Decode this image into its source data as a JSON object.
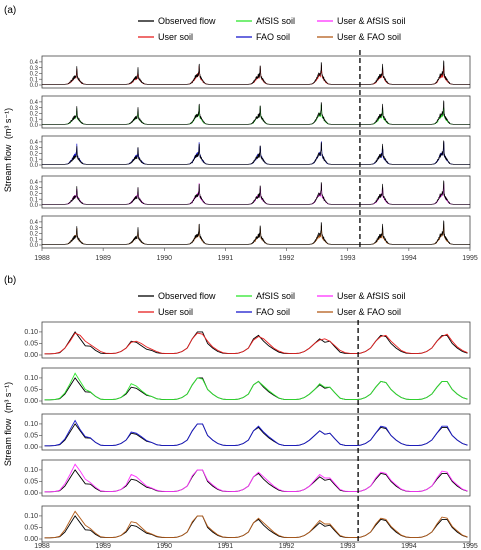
{
  "figure": {
    "axis_label": "Stream flow",
    "axis_unit": "(m³ s⁻¹)",
    "split_marker": "dashed vertical line"
  },
  "legend": {
    "items": [
      {
        "key": "observed",
        "label": "Observed flow",
        "color": "#000000"
      },
      {
        "key": "afsis",
        "label": "AfSIS soil",
        "color": "#2ee62e"
      },
      {
        "key": "user_afsis",
        "label": "User & AfSIS soil",
        "color": "#ff33ff"
      },
      {
        "key": "user",
        "label": "User soil",
        "color": "#e62020"
      },
      {
        "key": "fao",
        "label": "FAO soil",
        "color": "#1a1acc"
      },
      {
        "key": "user_fao",
        "label": "User & FAO soil",
        "color": "#b35c1a"
      }
    ]
  },
  "colors": {
    "observed": "#000000",
    "user": "#e62020",
    "afsis": "#2ee62e",
    "fao": "#1a1acc",
    "user_afsis": "#ff33ff",
    "user_fao": "#b35c1a"
  },
  "chart_data": [
    {
      "panel_label": "(a)",
      "type": "line",
      "resolution": "daily",
      "x_ticks": [
        "1988",
        "1989",
        "1990",
        "1991",
        "1992",
        "1993",
        "1994",
        "1995"
      ],
      "xlim": [
        1988,
        1995
      ],
      "ylim": [
        0,
        0.45
      ],
      "y_ticks": [
        "0.0",
        "0.1",
        "0.2",
        "0.3",
        "0.4"
      ],
      "split_at": 1993.2,
      "peak_years": [
        1988.55,
        1989.55,
        1990.55,
        1991.55,
        1992.55,
        1993.55,
        1994.55
      ],
      "observed_peaks": [
        0.28,
        0.26,
        0.36,
        0.33,
        0.38,
        0.34,
        0.4
      ],
      "subplots": [
        {
          "series": "user",
          "sim_peaks": [
            0.24,
            0.2,
            0.3,
            0.26,
            0.3,
            0.26,
            0.3
          ]
        },
        {
          "series": "afsis",
          "sim_peaks": [
            0.24,
            0.22,
            0.3,
            0.28,
            0.32,
            0.26,
            0.3
          ]
        },
        {
          "series": "fao",
          "sim_peaks": [
            0.3,
            0.26,
            0.34,
            0.3,
            0.34,
            0.3,
            0.36
          ]
        },
        {
          "series": "user_afsis",
          "sim_peaks": [
            0.26,
            0.24,
            0.32,
            0.28,
            0.32,
            0.28,
            0.34
          ]
        },
        {
          "series": "user_fao",
          "sim_peaks": [
            0.26,
            0.22,
            0.3,
            0.26,
            0.3,
            0.26,
            0.32
          ]
        }
      ]
    },
    {
      "panel_label": "(b)",
      "type": "line",
      "resolution": "monthly",
      "x_ticks": [
        "1988",
        "1989",
        "1990",
        "1991",
        "1992",
        "1993",
        "1994",
        "1995"
      ],
      "xlim": [
        1988,
        1995
      ],
      "ylim": [
        0,
        0.13
      ],
      "y_ticks": [
        "0.00",
        "0.05",
        "0.10"
      ],
      "split_at": 1993.17,
      "x_months": [
        "1988-01",
        "1988-02",
        "1988-03",
        "1988-04",
        "1988-05",
        "1988-06",
        "1988-07",
        "1988-08",
        "1988-09",
        "1988-10",
        "1988-11",
        "1988-12",
        "1989-01",
        "1989-02",
        "1989-03",
        "1989-04",
        "1989-05",
        "1989-06",
        "1989-07",
        "1989-08",
        "1989-09",
        "1989-10",
        "1989-11",
        "1989-12",
        "1990-01",
        "1990-02",
        "1990-03",
        "1990-04",
        "1990-05",
        "1990-06",
        "1990-07",
        "1990-08",
        "1990-09",
        "1990-10",
        "1990-11",
        "1990-12",
        "1991-01",
        "1991-02",
        "1991-03",
        "1991-04",
        "1991-05",
        "1991-06",
        "1991-07",
        "1991-08",
        "1991-09",
        "1991-10",
        "1991-11",
        "1991-12",
        "1992-01",
        "1992-02",
        "1992-03",
        "1992-04",
        "1992-05",
        "1992-06",
        "1992-07",
        "1992-08",
        "1992-09",
        "1992-10",
        "1992-11",
        "1992-12",
        "1993-01",
        "1993-02",
        "1993-03",
        "1993-04",
        "1993-05",
        "1993-06",
        "1993-07",
        "1993-08",
        "1993-09",
        "1993-10",
        "1993-11",
        "1993-12",
        "1994-01",
        "1994-02",
        "1994-03",
        "1994-04",
        "1994-05",
        "1994-06",
        "1994-07",
        "1994-08",
        "1994-09",
        "1994-10",
        "1994-11",
        "1994-12"
      ],
      "observed": [
        0.005,
        0.005,
        0.006,
        0.01,
        0.03,
        0.065,
        0.1,
        0.07,
        0.04,
        0.038,
        0.02,
        0.008,
        0.006,
        0.006,
        0.008,
        0.015,
        0.03,
        0.06,
        0.055,
        0.04,
        0.025,
        0.02,
        0.01,
        0.007,
        0.006,
        0.006,
        0.008,
        0.015,
        0.03,
        0.07,
        0.1,
        0.1,
        0.05,
        0.03,
        0.015,
        0.008,
        0.006,
        0.006,
        0.008,
        0.015,
        0.03,
        0.07,
        0.085,
        0.06,
        0.04,
        0.025,
        0.012,
        0.007,
        0.006,
        0.006,
        0.008,
        0.015,
        0.03,
        0.05,
        0.07,
        0.055,
        0.06,
        0.035,
        0.012,
        0.007,
        0.006,
        0.006,
        0.008,
        0.015,
        0.03,
        0.06,
        0.085,
        0.08,
        0.05,
        0.03,
        0.015,
        0.008,
        0.006,
        0.006,
        0.008,
        0.015,
        0.03,
        0.06,
        0.085,
        0.085,
        0.05,
        0.03,
        0.015,
        0.008
      ],
      "subplots": [
        {
          "series": "user",
          "values": [
            0.005,
            0.005,
            0.006,
            0.012,
            0.03,
            0.06,
            0.095,
            0.085,
            0.06,
            0.045,
            0.03,
            0.015,
            0.008,
            0.007,
            0.008,
            0.015,
            0.03,
            0.055,
            0.06,
            0.05,
            0.035,
            0.025,
            0.015,
            0.008,
            0.006,
            0.006,
            0.008,
            0.015,
            0.03,
            0.07,
            0.095,
            0.09,
            0.06,
            0.035,
            0.02,
            0.01,
            0.007,
            0.006,
            0.008,
            0.015,
            0.03,
            0.065,
            0.08,
            0.07,
            0.05,
            0.03,
            0.017,
            0.009,
            0.007,
            0.006,
            0.008,
            0.015,
            0.03,
            0.05,
            0.065,
            0.07,
            0.06,
            0.04,
            0.02,
            0.01,
            0.007,
            0.006,
            0.008,
            0.015,
            0.03,
            0.06,
            0.08,
            0.085,
            0.06,
            0.04,
            0.02,
            0.01,
            0.007,
            0.006,
            0.008,
            0.015,
            0.03,
            0.06,
            0.08,
            0.09,
            0.06,
            0.035,
            0.02,
            0.01
          ]
        },
        {
          "series": "afsis",
          "values": [
            0.005,
            0.005,
            0.006,
            0.012,
            0.035,
            0.075,
            0.12,
            0.085,
            0.05,
            0.04,
            0.02,
            0.008,
            0.006,
            0.006,
            0.008,
            0.015,
            0.035,
            0.075,
            0.065,
            0.045,
            0.028,
            0.02,
            0.01,
            0.007,
            0.006,
            0.006,
            0.008,
            0.015,
            0.03,
            0.07,
            0.1,
            0.095,
            0.05,
            0.03,
            0.015,
            0.008,
            0.006,
            0.006,
            0.008,
            0.015,
            0.03,
            0.07,
            0.085,
            0.065,
            0.045,
            0.028,
            0.013,
            0.007,
            0.006,
            0.006,
            0.008,
            0.015,
            0.03,
            0.05,
            0.075,
            0.06,
            0.06,
            0.035,
            0.012,
            0.007,
            0.006,
            0.006,
            0.008,
            0.015,
            0.03,
            0.06,
            0.085,
            0.08,
            0.05,
            0.03,
            0.015,
            0.008,
            0.006,
            0.006,
            0.008,
            0.015,
            0.03,
            0.06,
            0.085,
            0.085,
            0.05,
            0.03,
            0.015,
            0.008
          ]
        },
        {
          "series": "fao",
          "values": [
            0.005,
            0.005,
            0.006,
            0.012,
            0.035,
            0.075,
            0.115,
            0.075,
            0.045,
            0.04,
            0.02,
            0.008,
            0.006,
            0.006,
            0.008,
            0.015,
            0.03,
            0.065,
            0.06,
            0.045,
            0.028,
            0.02,
            0.01,
            0.007,
            0.006,
            0.006,
            0.008,
            0.015,
            0.03,
            0.07,
            0.1,
            0.1,
            0.05,
            0.03,
            0.015,
            0.008,
            0.006,
            0.006,
            0.008,
            0.015,
            0.03,
            0.07,
            0.09,
            0.065,
            0.045,
            0.028,
            0.012,
            0.007,
            0.006,
            0.006,
            0.008,
            0.015,
            0.03,
            0.05,
            0.07,
            0.055,
            0.06,
            0.035,
            0.012,
            0.007,
            0.006,
            0.006,
            0.008,
            0.015,
            0.03,
            0.06,
            0.09,
            0.085,
            0.05,
            0.03,
            0.015,
            0.008,
            0.006,
            0.006,
            0.008,
            0.015,
            0.03,
            0.06,
            0.09,
            0.09,
            0.05,
            0.03,
            0.015,
            0.008
          ]
        },
        {
          "series": "user_afsis",
          "values": [
            0.005,
            0.005,
            0.006,
            0.012,
            0.04,
            0.08,
            0.125,
            0.095,
            0.06,
            0.045,
            0.025,
            0.01,
            0.007,
            0.006,
            0.008,
            0.015,
            0.035,
            0.08,
            0.07,
            0.05,
            0.03,
            0.022,
            0.012,
            0.008,
            0.006,
            0.006,
            0.008,
            0.015,
            0.03,
            0.075,
            0.1,
            0.1,
            0.055,
            0.035,
            0.018,
            0.009,
            0.007,
            0.006,
            0.008,
            0.015,
            0.03,
            0.07,
            0.09,
            0.07,
            0.05,
            0.03,
            0.015,
            0.008,
            0.006,
            0.006,
            0.008,
            0.015,
            0.03,
            0.055,
            0.08,
            0.065,
            0.065,
            0.04,
            0.015,
            0.008,
            0.006,
            0.006,
            0.008,
            0.015,
            0.03,
            0.065,
            0.09,
            0.085,
            0.055,
            0.035,
            0.017,
            0.009,
            0.006,
            0.006,
            0.008,
            0.015,
            0.03,
            0.065,
            0.095,
            0.09,
            0.055,
            0.035,
            0.017,
            0.009
          ]
        },
        {
          "series": "user_fao",
          "values": [
            0.005,
            0.005,
            0.006,
            0.012,
            0.04,
            0.08,
            0.12,
            0.09,
            0.06,
            0.045,
            0.025,
            0.01,
            0.007,
            0.006,
            0.008,
            0.015,
            0.035,
            0.075,
            0.07,
            0.05,
            0.03,
            0.022,
            0.012,
            0.008,
            0.006,
            0.006,
            0.008,
            0.015,
            0.03,
            0.075,
            0.1,
            0.1,
            0.055,
            0.035,
            0.018,
            0.009,
            0.007,
            0.006,
            0.008,
            0.015,
            0.03,
            0.07,
            0.09,
            0.07,
            0.05,
            0.03,
            0.015,
            0.008,
            0.006,
            0.006,
            0.008,
            0.015,
            0.03,
            0.055,
            0.08,
            0.065,
            0.065,
            0.04,
            0.015,
            0.008,
            0.006,
            0.006,
            0.008,
            0.015,
            0.03,
            0.065,
            0.09,
            0.085,
            0.055,
            0.035,
            0.017,
            0.009,
            0.006,
            0.006,
            0.008,
            0.015,
            0.03,
            0.065,
            0.095,
            0.09,
            0.055,
            0.035,
            0.017,
            0.009
          ]
        }
      ]
    }
  ]
}
